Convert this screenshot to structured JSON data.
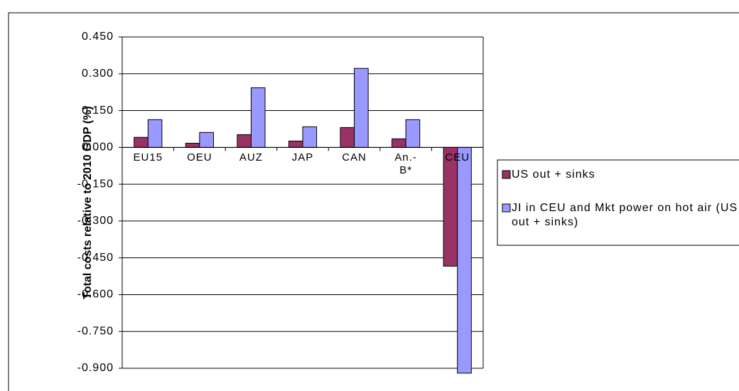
{
  "chart_data": {
    "type": "bar",
    "y_axis_label": "Total costs relative to 2010 GDP (%)",
    "categories": [
      "EU15",
      "OEU",
      "AUZ",
      "JAP",
      "CAN",
      "An.-B*",
      "CEU"
    ],
    "series": [
      {
        "name": "US out + sinks",
        "color": "#993366",
        "values": [
          0.041,
          0.017,
          0.052,
          0.026,
          0.081,
          0.035,
          -0.484
        ]
      },
      {
        "name": "JI in CEU and Mkt power on hot air (US out + sinks)",
        "color": "#9999ff",
        "values": [
          0.113,
          0.061,
          0.243,
          0.084,
          0.322,
          0.113,
          -0.92
        ]
      }
    ],
    "ylim": [
      -0.9,
      0.45
    ],
    "yticks": [
      {
        "value": 0.45,
        "label": "0.450"
      },
      {
        "value": 0.3,
        "label": "0.300"
      },
      {
        "value": 0.15,
        "label": "0.150"
      },
      {
        "value": 0,
        "label": "0.000"
      },
      {
        "value": -0.15,
        "label": "-0.150"
      },
      {
        "value": -0.3,
        "label": "-0.300"
      },
      {
        "value": -0.45,
        "label": "-0.450"
      },
      {
        "value": -0.6,
        "label": "-0.600"
      },
      {
        "value": -0.75,
        "label": "-0.750"
      },
      {
        "value": -0.9,
        "label": "-0.900"
      }
    ],
    "grid": true
  }
}
